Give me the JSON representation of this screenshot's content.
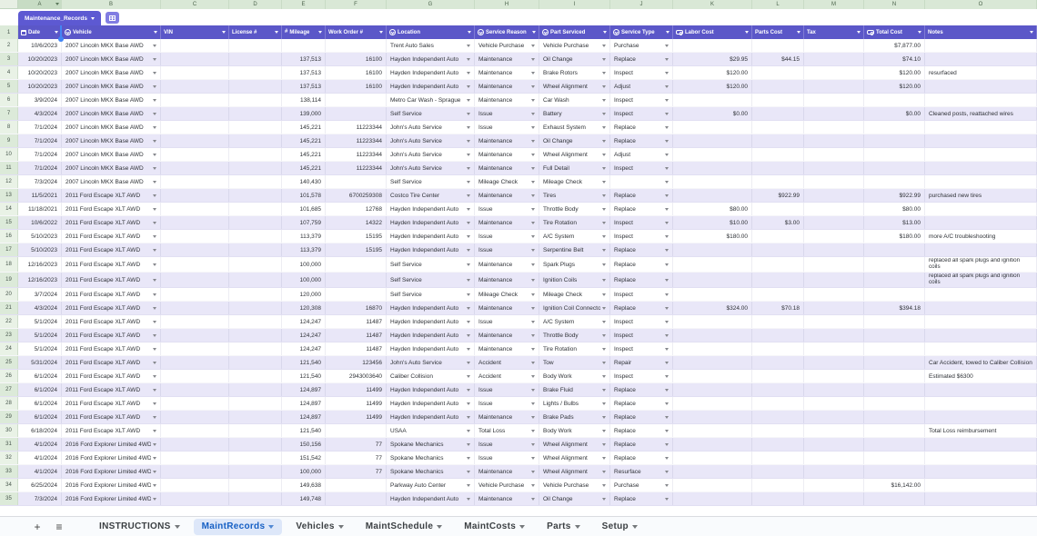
{
  "colors": {
    "header_purple": "#5b57c8",
    "chip_purple": "#5d59d2",
    "band_lavender": "#e9e7f8",
    "gutter_green": "#dcead9",
    "active_tab_blue": "#155fc4",
    "cursor_blue": "#4285f4"
  },
  "sheet": {
    "table_name": "Maintenance_Records",
    "column_letters": [
      "A",
      "B",
      "C",
      "D",
      "E",
      "F",
      "G",
      "H",
      "I",
      "J",
      "K",
      "L",
      "M",
      "N",
      "O"
    ],
    "columns": [
      {
        "label": "Date",
        "icon": "calendar"
      },
      {
        "label": "Vehicle",
        "icon": "dropdown"
      },
      {
        "label": "VIN",
        "icon": null
      },
      {
        "label": "License #",
        "icon": null
      },
      {
        "label": "Mileage",
        "icon": "number"
      },
      {
        "label": "Work Order #",
        "icon": null
      },
      {
        "label": "Location",
        "icon": "dropdown"
      },
      {
        "label": "Service Reason",
        "icon": "dropdown"
      },
      {
        "label": "Part Serviced",
        "icon": "dropdown"
      },
      {
        "label": "Service Type",
        "icon": "dropdown"
      },
      {
        "label": "Labor Cost",
        "icon": "currency"
      },
      {
        "label": "Parts Cost",
        "icon": null
      },
      {
        "label": "Tax",
        "icon": null
      },
      {
        "label": "Total Cost",
        "icon": "currency"
      },
      {
        "label": "Notes",
        "icon": null
      }
    ],
    "rows": [
      {
        "n": "2",
        "cells": [
          "10/6/2023",
          "2007 Lincoln MKX Base AWD",
          "",
          "",
          "",
          "",
          "Trent Auto Sales",
          "Vehicle Purchase",
          "Vehicle Purchase",
          "Purchase",
          "",
          "",
          "",
          "$7,877.00",
          ""
        ]
      },
      {
        "n": "3",
        "cells": [
          "10/20/2023",
          "2007 Lincoln MKX Base AWD",
          "",
          "",
          "137,513",
          "16100",
          "Hayden Independent Auto",
          "Maintenance",
          "Oil Change",
          "Replace",
          "$29.95",
          "$44.15",
          "",
          "$74.10",
          ""
        ]
      },
      {
        "n": "4",
        "cells": [
          "10/20/2023",
          "2007 Lincoln MKX Base AWD",
          "",
          "",
          "137,513",
          "16100",
          "Hayden Independent Auto",
          "Maintenance",
          "Brake Rotors",
          "Inspect",
          "$120.00",
          "",
          "",
          "$120.00",
          "resurfaced"
        ]
      },
      {
        "n": "5",
        "cells": [
          "10/20/2023",
          "2007 Lincoln MKX Base AWD",
          "",
          "",
          "137,513",
          "16100",
          "Hayden Independent Auto",
          "Maintenance",
          "Wheel Alignment",
          "Adjust",
          "$120.00",
          "",
          "",
          "$120.00",
          ""
        ]
      },
      {
        "n": "6",
        "cells": [
          "3/9/2024",
          "2007 Lincoln MKX Base AWD",
          "",
          "",
          "138,114",
          "",
          "Metro Car Wash - Sprague",
          "Maintenance",
          "Car Wash",
          "Inspect",
          "",
          "",
          "",
          "",
          ""
        ]
      },
      {
        "n": "7",
        "cells": [
          "4/3/2024",
          "2007 Lincoln MKX Base AWD",
          "",
          "",
          "139,000",
          "",
          "Self Service",
          "Issue",
          "Battery",
          "Inspect",
          "$0.00",
          "",
          "",
          "$0.00",
          "Cleaned posts, reattached wires"
        ]
      },
      {
        "n": "8",
        "cells": [
          "7/1/2024",
          "2007 Lincoln MKX Base AWD",
          "",
          "",
          "145,221",
          "11223344",
          "John's Auto Service",
          "Issue",
          "Exhaust System",
          "Replace",
          "",
          "",
          "",
          "",
          ""
        ]
      },
      {
        "n": "9",
        "cells": [
          "7/1/2024",
          "2007 Lincoln MKX Base AWD",
          "",
          "",
          "145,221",
          "11223344",
          "John's Auto Service",
          "Maintenance",
          "Oil Change",
          "Replace",
          "",
          "",
          "",
          "",
          ""
        ]
      },
      {
        "n": "10",
        "cells": [
          "7/1/2024",
          "2007 Lincoln MKX Base AWD",
          "",
          "",
          "145,221",
          "11223344",
          "John's Auto Service",
          "Maintenance",
          "Wheel Alignment",
          "Adjust",
          "",
          "",
          "",
          "",
          ""
        ]
      },
      {
        "n": "11",
        "cells": [
          "7/1/2024",
          "2007 Lincoln MKX Base AWD",
          "",
          "",
          "145,221",
          "11223344",
          "John's Auto Service",
          "Maintenance",
          "Full Detail",
          "Inspect",
          "",
          "",
          "",
          "",
          ""
        ]
      },
      {
        "n": "12",
        "cells": [
          "7/3/2024",
          "2007 Lincoln MKX Base AWD",
          "",
          "",
          "140,430",
          "",
          "Self Service",
          "Mileage Check",
          "Mileage Check",
          "",
          "",
          "",
          "",
          "",
          ""
        ]
      },
      {
        "n": "13",
        "cells": [
          "11/5/2021",
          "2011 Ford Escape XLT AWD",
          "",
          "",
          "101,578",
          "6700259308",
          "Costco Tire Center",
          "Maintenance",
          "Tires",
          "Replace",
          "",
          "$922.99",
          "",
          "$922.99",
          "purchased new tires"
        ]
      },
      {
        "n": "14",
        "cells": [
          "11/18/2021",
          "2011 Ford Escape XLT AWD",
          "",
          "",
          "101,685",
          "12768",
          "Hayden Independent Auto",
          "Issue",
          "Throttle Body",
          "Replace",
          "$80.00",
          "",
          "",
          "$80.00",
          ""
        ]
      },
      {
        "n": "15",
        "cells": [
          "10/6/2022",
          "2011 Ford Escape XLT AWD",
          "",
          "",
          "107,759",
          "14322",
          "Hayden Independent Auto",
          "Maintenance",
          "Tire Rotation",
          "Inspect",
          "$10.00",
          "$3.00",
          "",
          "$13.00",
          ""
        ]
      },
      {
        "n": "16",
        "cells": [
          "5/10/2023",
          "2011 Ford Escape XLT AWD",
          "",
          "",
          "113,379",
          "15195",
          "Hayden Independent Auto",
          "Issue",
          "A/C System",
          "Inspect",
          "$180.00",
          "",
          "",
          "$180.00",
          "more A/C troubleshooting"
        ]
      },
      {
        "n": "17",
        "cells": [
          "5/10/2023",
          "2011 Ford Escape XLT AWD",
          "",
          "",
          "113,379",
          "15195",
          "Hayden Independent Auto",
          "Issue",
          "Serpentine Belt",
          "Replace",
          "",
          "",
          "",
          "",
          ""
        ]
      },
      {
        "n": "18",
        "wrap_note": true,
        "cells": [
          "12/16/2023",
          "2011 Ford Escape XLT AWD",
          "",
          "",
          "100,000",
          "",
          "Self Service",
          "Maintenance",
          "Spark Plugs",
          "Replace",
          "",
          "",
          "",
          "",
          "replaced all spark plugs and ignition coils"
        ]
      },
      {
        "n": "19",
        "wrap_note": true,
        "cells": [
          "12/16/2023",
          "2011 Ford Escape XLT AWD",
          "",
          "",
          "100,000",
          "",
          "Self Service",
          "Maintenance",
          "Ignition Coils",
          "Replace",
          "",
          "",
          "",
          "",
          "replaced all spark plugs and ignition coils"
        ]
      },
      {
        "n": "20",
        "cells": [
          "3/7/2024",
          "2011 Ford Escape XLT AWD",
          "",
          "",
          "120,000",
          "",
          "Self Service",
          "Mileage Check",
          "Mileage Check",
          "Inspect",
          "",
          "",
          "",
          "",
          ""
        ]
      },
      {
        "n": "21",
        "cells": [
          "4/3/2024",
          "2011 Ford Escape XLT AWD",
          "",
          "",
          "120,308",
          "16870",
          "Hayden Independent Auto",
          "Maintenance",
          "Ignition Coil Connectors",
          "Replace",
          "$324.00",
          "$70.18",
          "",
          "$394.18",
          ""
        ]
      },
      {
        "n": "22",
        "cells": [
          "5/1/2024",
          "2011 Ford Escape XLT AWD",
          "",
          "",
          "124,247",
          "11487",
          "Hayden Independent Auto",
          "Issue",
          "A/C System",
          "Inspect",
          "",
          "",
          "",
          "",
          ""
        ]
      },
      {
        "n": "23",
        "cells": [
          "5/1/2024",
          "2011 Ford Escape XLT AWD",
          "",
          "",
          "124,247",
          "11487",
          "Hayden Independent Auto",
          "Maintenance",
          "Throttle Body",
          "Inspect",
          "",
          "",
          "",
          "",
          ""
        ]
      },
      {
        "n": "24",
        "cells": [
          "5/1/2024",
          "2011 Ford Escape XLT AWD",
          "",
          "",
          "124,247",
          "11487",
          "Hayden Independent Auto",
          "Maintenance",
          "Tire Rotation",
          "Inspect",
          "",
          "",
          "",
          "",
          ""
        ]
      },
      {
        "n": "25",
        "cells": [
          "5/31/2024",
          "2011 Ford Escape XLT AWD",
          "",
          "",
          "121,540",
          "123456",
          "John's Auto Service",
          "Accident",
          "Tow",
          "Repair",
          "",
          "",
          "",
          "",
          "Car Accident, towed to Caliber Collision"
        ]
      },
      {
        "n": "26",
        "cells": [
          "6/1/2024",
          "2011 Ford Escape XLT AWD",
          "",
          "",
          "121,540",
          "2943003640",
          "Caliber Collision",
          "Accident",
          "Body Work",
          "Inspect",
          "",
          "",
          "",
          "",
          "Estimated $6300"
        ]
      },
      {
        "n": "27",
        "cells": [
          "6/1/2024",
          "2011 Ford Escape XLT AWD",
          "",
          "",
          "124,897",
          "11499",
          "Hayden Independent Auto",
          "Issue",
          "Brake Fluid",
          "Replace",
          "",
          "",
          "",
          "",
          ""
        ]
      },
      {
        "n": "28",
        "cells": [
          "6/1/2024",
          "2011 Ford Escape XLT AWD",
          "",
          "",
          "124,897",
          "11499",
          "Hayden Independent Auto",
          "Issue",
          "Lights / Bulbs",
          "Replace",
          "",
          "",
          "",
          "",
          ""
        ]
      },
      {
        "n": "29",
        "cells": [
          "6/1/2024",
          "2011 Ford Escape XLT AWD",
          "",
          "",
          "124,897",
          "11499",
          "Hayden Independent Auto",
          "Maintenance",
          "Brake Pads",
          "Replace",
          "",
          "",
          "",
          "",
          ""
        ]
      },
      {
        "n": "30",
        "cells": [
          "6/18/2024",
          "2011 Ford Escape XLT AWD",
          "",
          "",
          "121,540",
          "",
          "USAA",
          "Total Loss",
          "Body Work",
          "Replace",
          "",
          "",
          "",
          "",
          "Total Loss reimbursement"
        ]
      },
      {
        "n": "31",
        "cells": [
          "4/1/2024",
          "2016 Ford Explorer Limited 4WD",
          "",
          "",
          "150,156",
          "77",
          "Spokane Mechanics",
          "Issue",
          "Wheel Alignment",
          "Replace",
          "",
          "",
          "",
          "",
          ""
        ]
      },
      {
        "n": "32",
        "cells": [
          "4/1/2024",
          "2016 Ford Explorer Limited 4WD",
          "",
          "",
          "151,542",
          "77",
          "Spokane Mechanics",
          "Issue",
          "Wheel Alignment",
          "Replace",
          "",
          "",
          "",
          "",
          ""
        ]
      },
      {
        "n": "33",
        "cells": [
          "4/1/2024",
          "2016 Ford Explorer Limited 4WD",
          "",
          "",
          "100,000",
          "77",
          "Spokane Mechanics",
          "Maintenance",
          "Wheel Alignment",
          "Resurface",
          "",
          "",
          "",
          "",
          ""
        ]
      },
      {
        "n": "34",
        "cells": [
          "6/25/2024",
          "2016 Ford Explorer Limited 4WD",
          "",
          "",
          "149,638",
          "",
          "Parkway Auto Center",
          "Vehicle Purchase",
          "Vehicle Purchase",
          "Purchase",
          "",
          "",
          "",
          "$16,142.00",
          ""
        ]
      },
      {
        "n": "35",
        "cells": [
          "7/3/2024",
          "2016 Ford Explorer Limited 4WD",
          "",
          "",
          "149,748",
          "",
          "Hayden Independent Auto",
          "Maintenance",
          "Oil Change",
          "Replace",
          "",
          "",
          "",
          "",
          ""
        ]
      }
    ]
  },
  "tab_bar": {
    "add_label": "+",
    "menu_label": "≡",
    "items": [
      {
        "label": "INSTRUCTIONS",
        "active": false
      },
      {
        "label": "MaintRecords",
        "active": true
      },
      {
        "label": "Vehicles",
        "active": false
      },
      {
        "label": "MaintSchedule",
        "active": false
      },
      {
        "label": "MaintCosts",
        "active": false
      },
      {
        "label": "Parts",
        "active": false
      },
      {
        "label": "Setup",
        "active": false
      }
    ]
  }
}
